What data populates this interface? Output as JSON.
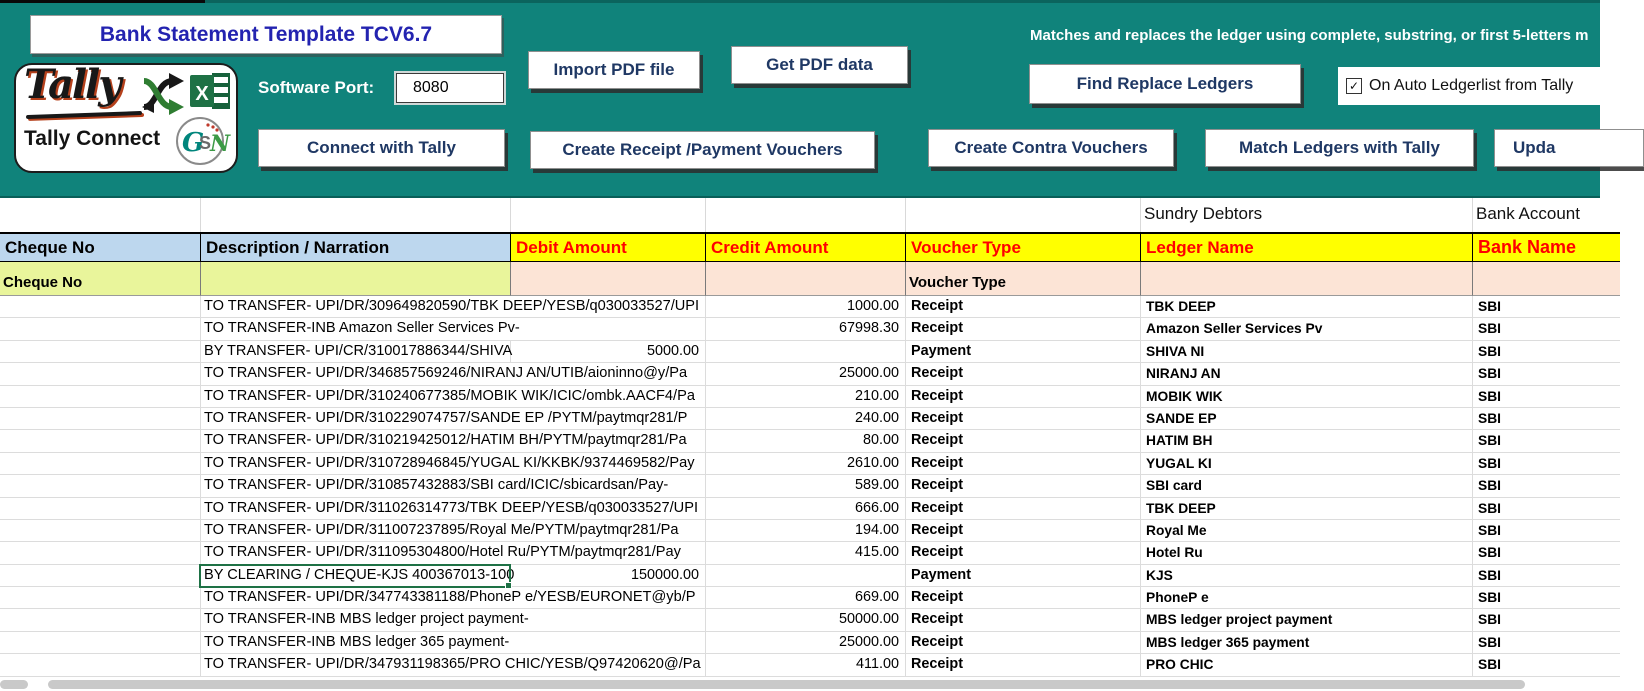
{
  "app": {
    "title": "Bank Statement Template TCV6.7",
    "logo": {
      "brand_script": "Tally",
      "brand_sub": "Tally Connect",
      "excel_letter": "X",
      "gstn_letters": "GSN"
    },
    "port_label": "Software Port:",
    "port_value": "8080",
    "match_note": "Matches and replaces the ledger using complete, substring, or first 5-letters m",
    "checkbox": {
      "checked": true,
      "check_glyph": "✓",
      "label": "On Auto Ledgerlist from Tally"
    },
    "buttons": {
      "import_pdf": "Import PDF file",
      "get_pdf": "Get PDF data",
      "connect": "Connect with Tally",
      "create_receipt": "Create Receipt /Payment Vouchers",
      "find_replace": "Find Replace Ledgers",
      "create_contra": "Create Contra Vouchers",
      "match_ledgers": "Match Ledgers with Tally",
      "update_partial": "Upda"
    }
  },
  "colors": {
    "teal_background": "#10837B",
    "title_text": "#2323B0",
    "button_text": "#1F3864",
    "header_blue": "#BDD7EE",
    "header_yellow": "#FFFF00",
    "header_red_text": "#FF0000",
    "filter_lime": "#E9F59B",
    "filter_peach": "#FCE4D6",
    "selection_green": "#1E7145",
    "bank_value": "SBI"
  },
  "table": {
    "group_labels": {
      "sundry": "Sundry Debtors",
      "bank_account": "Bank Account"
    },
    "columns": [
      "Cheque No",
      "Description / Narration",
      "Debit Amount",
      "Credit Amount",
      "Voucher Type",
      "Ledger Name",
      "Bank Name"
    ],
    "filter_row": {
      "cheque": "Cheque No",
      "voucher": "Voucher Type"
    },
    "rows": [
      {
        "narration": "TO TRANSFER- UPI/DR/309649820590/TBK DEEP/YESB/q030033527/UPI",
        "debit": "",
        "credit": "1000.00",
        "voucher": "Receipt",
        "ledger": "TBK DEEP",
        "bank": "SBI"
      },
      {
        "narration": "TO TRANSFER-INB Amazon Seller Services Pv-",
        "debit": "",
        "credit": "67998.30",
        "voucher": "Receipt",
        "ledger": "Amazon Seller Services Pv",
        "bank": "SBI"
      },
      {
        "narration": "BY TRANSFER- UPI/CR/310017886344/SHIVA",
        "debit": "5000.00",
        "credit": "",
        "voucher": "Payment",
        "ledger": "SHIVA NI",
        "bank": "SBI"
      },
      {
        "narration": "TO TRANSFER- UPI/DR/346857569246/NIRANJ AN/UTIB/aioninno@y/Pa",
        "debit": "",
        "credit": "25000.00",
        "voucher": "Receipt",
        "ledger": "NIRANJ AN",
        "bank": "SBI"
      },
      {
        "narration": "TO TRANSFER- UPI/DR/310240677385/MOBIK WIK/ICIC/ombk.AACF4/Pa",
        "debit": "",
        "credit": "210.00",
        "voucher": "Receipt",
        "ledger": "MOBIK WIK",
        "bank": "SBI"
      },
      {
        "narration": "TO TRANSFER- UPI/DR/310229074757/SANDE EP /PYTM/paytmqr281/P",
        "debit": "",
        "credit": "240.00",
        "voucher": "Receipt",
        "ledger": "SANDE EP",
        "bank": "SBI"
      },
      {
        "narration": "TO TRANSFER- UPI/DR/310219425012/HATIM BH/PYTM/paytmqr281/Pa",
        "debit": "",
        "credit": "80.00",
        "voucher": "Receipt",
        "ledger": "HATIM BH",
        "bank": "SBI"
      },
      {
        "narration": "TO TRANSFER- UPI/DR/310728946845/YUGAL KI/KKBK/9374469582/Pay",
        "debit": "",
        "credit": "2610.00",
        "voucher": "Receipt",
        "ledger": "YUGAL KI",
        "bank": "SBI"
      },
      {
        "narration": "TO TRANSFER- UPI/DR/310857432883/SBI card/ICIC/sbicardsan/Pay-",
        "debit": "",
        "credit": "589.00",
        "voucher": "Receipt",
        "ledger": "SBI card",
        "bank": "SBI"
      },
      {
        "narration": "TO TRANSFER- UPI/DR/311026314773/TBK DEEP/YESB/q030033527/UPI",
        "debit": "",
        "credit": "666.00",
        "voucher": "Receipt",
        "ledger": "TBK DEEP",
        "bank": "SBI"
      },
      {
        "narration": "TO TRANSFER- UPI/DR/311007237895/Royal Me/PYTM/paytmqr281/Pa",
        "debit": "",
        "credit": "194.00",
        "voucher": "Receipt",
        "ledger": "Royal Me",
        "bank": "SBI"
      },
      {
        "narration": "TO TRANSFER- UPI/DR/311095304800/Hotel Ru/PYTM/paytmqr281/Pay",
        "debit": "",
        "credit": "415.00",
        "voucher": "Receipt",
        "ledger": "Hotel Ru",
        "bank": "SBI"
      },
      {
        "narration": "BY CLEARING / CHEQUE-KJS 400367013-100",
        "debit": "150000.00",
        "credit": "",
        "voucher": "Payment",
        "ledger": "KJS",
        "bank": "SBI",
        "selected": true
      },
      {
        "narration": "TO TRANSFER- UPI/DR/347743381188/PhoneP e/YESB/EURONET@yb/P",
        "debit": "",
        "credit": "669.00",
        "voucher": "Receipt",
        "ledger": "PhoneP e",
        "bank": "SBI"
      },
      {
        "narration": "TO TRANSFER-INB MBS ledger project payment-",
        "debit": "",
        "credit": "50000.00",
        "voucher": "Receipt",
        "ledger": "MBS ledger project payment",
        "bank": "SBI"
      },
      {
        "narration": "TO TRANSFER-INB MBS ledger 365 payment-",
        "debit": "",
        "credit": "25000.00",
        "voucher": "Receipt",
        "ledger": "MBS ledger 365 payment",
        "bank": "SBI"
      },
      {
        "narration": "TO TRANSFER- UPI/DR/347931198365/PRO CHIC/YESB/Q97420620@/Pa",
        "debit": "",
        "credit": "411.00",
        "voucher": "Receipt",
        "ledger": "PRO CHIC",
        "bank": "SBI"
      }
    ]
  }
}
